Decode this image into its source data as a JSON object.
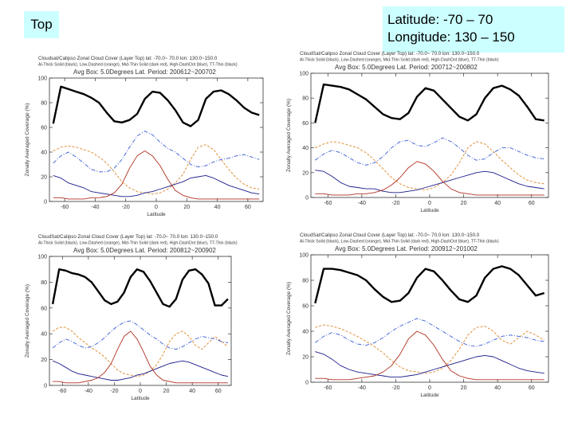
{
  "slide": {
    "top_label": "Top",
    "region_line1": "Latitude:  -70 – 70",
    "region_line2": "Longitude: 130 – 150"
  },
  "colors": {
    "thick": "#000000",
    "low": "#e0903a",
    "mid": "#1c1c8c",
    "high": "#4a6ad8",
    "thin": "#b03020",
    "label_bg": "#ccffff"
  },
  "chart_data": [
    {
      "type": "line",
      "title": "Cloudsat/Calipso Zonal Cloud Cover (Layer Top) lat: -70.0~ 70.0 lon: 130.0~150.0",
      "legend_text": "Al-Thick Solid (black), Low-Dashed (orange), Mid-Thin Solid (dark red), High-DashDot (blue), TT-Thin (black)",
      "subtitle": "Avg Box: 5.0Degrees Lat. Period: 200612~200702",
      "xlabel": "Latitude",
      "ylabel": "Zonally Averaged Coverage (%)",
      "xlim": [
        -70,
        70
      ],
      "ylim": [
        0,
        100
      ],
      "xticks": [
        -60,
        -40,
        -20,
        0,
        20,
        40,
        60
      ],
      "yticks": [
        0,
        20,
        40,
        60,
        80,
        100
      ],
      "x": [
        -67.5,
        -62.5,
        -57.5,
        -52.5,
        -47.5,
        -42.5,
        -37.5,
        -32.5,
        -27.5,
        -22.5,
        -17.5,
        -12.5,
        -7.5,
        -2.5,
        2.5,
        7.5,
        12.5,
        17.5,
        22.5,
        27.5,
        32.5,
        37.5,
        42.5,
        47.5,
        52.5,
        57.5,
        62.5,
        67.5
      ],
      "series": [
        {
          "name": "Al-Thick",
          "values": [
            63,
            93,
            91,
            89,
            87,
            84,
            80,
            72,
            65,
            64,
            66,
            71,
            83,
            89,
            88,
            82,
            74,
            64,
            61,
            66,
            83,
            89,
            90,
            87,
            82,
            76,
            72,
            70
          ]
        },
        {
          "name": "Low",
          "values": [
            41,
            44,
            45,
            44,
            42,
            40,
            36,
            31,
            24,
            16,
            11,
            8,
            7,
            6,
            7,
            10,
            15,
            22,
            34,
            44,
            46,
            42,
            34,
            26,
            19,
            14,
            11,
            10
          ]
        },
        {
          "name": "Mid",
          "values": [
            21,
            19,
            15,
            13,
            11,
            8,
            7,
            6,
            5,
            4,
            4,
            5,
            7,
            8,
            10,
            12,
            14,
            16,
            19,
            20,
            21,
            19,
            16,
            13,
            11,
            9,
            7,
            6
          ]
        },
        {
          "name": "High",
          "values": [
            31,
            37,
            40,
            36,
            31,
            26,
            24,
            24,
            27,
            34,
            44,
            53,
            57,
            54,
            48,
            43,
            40,
            35,
            30,
            28,
            29,
            32,
            34,
            35,
            37,
            38,
            36,
            34
          ]
        },
        {
          "name": "TT-Thin",
          "values": [
            3,
            3,
            2,
            2,
            2,
            3,
            3,
            4,
            7,
            14,
            27,
            37,
            41,
            37,
            29,
            18,
            9,
            5,
            3,
            2,
            2,
            2,
            2,
            2,
            2,
            2,
            2,
            2
          ]
        }
      ]
    },
    {
      "type": "line",
      "title": "CloudSat/Calipso Zonal Cloud Cover (Layer Top) lat: -70.0~ 70.0 lon: 130.0~150.0",
      "legend_text": "Al-Thick Solid (black), Low-Dashed (orange), Mid-Thin Solid (dark red), High-DashDot (blue), TT-Thin (black)",
      "subtitle": "Avg Box: 5.0Degrees Lat. Period: 200712~200802",
      "xlabel": "Latitude",
      "ylabel": "Zonally Averaged Coverage (%)",
      "xlim": [
        -70,
        70
      ],
      "ylim": [
        0,
        100
      ],
      "xticks": [
        -60,
        -40,
        -20,
        0,
        20,
        40,
        60
      ],
      "yticks": [
        0,
        20,
        40,
        60,
        80,
        100
      ],
      "x": [
        -67.5,
        -62.5,
        -57.5,
        -52.5,
        -47.5,
        -42.5,
        -37.5,
        -32.5,
        -27.5,
        -22.5,
        -17.5,
        -12.5,
        -7.5,
        -2.5,
        2.5,
        7.5,
        12.5,
        17.5,
        22.5,
        27.5,
        32.5,
        37.5,
        42.5,
        47.5,
        52.5,
        57.5,
        62.5,
        67.5
      ],
      "series": [
        {
          "name": "Al-Thick",
          "values": [
            60,
            91,
            90,
            89,
            87,
            83,
            79,
            73,
            67,
            64,
            63,
            68,
            81,
            88,
            86,
            79,
            72,
            65,
            62,
            67,
            80,
            88,
            90,
            87,
            82,
            73,
            63,
            62
          ]
        },
        {
          "name": "Low",
          "values": [
            40,
            43,
            45,
            44,
            42,
            40,
            36,
            30,
            23,
            16,
            11,
            8,
            7,
            6,
            8,
            12,
            18,
            28,
            40,
            45,
            43,
            37,
            30,
            24,
            18,
            14,
            12,
            11
          ]
        },
        {
          "name": "Mid",
          "values": [
            22,
            21,
            17,
            12,
            9,
            8,
            7,
            7,
            5,
            4,
            4,
            5,
            6,
            8,
            10,
            12,
            14,
            16,
            18,
            20,
            21,
            20,
            17,
            14,
            11,
            9,
            8,
            7
          ]
        },
        {
          "name": "High",
          "values": [
            30,
            35,
            38,
            36,
            32,
            28,
            26,
            28,
            33,
            40,
            45,
            46,
            42,
            41,
            44,
            48,
            45,
            40,
            34,
            30,
            31,
            36,
            40,
            40,
            37,
            34,
            32,
            31
          ]
        },
        {
          "name": "TT-Thin",
          "values": [
            3,
            3,
            2,
            2,
            2,
            3,
            3,
            4,
            6,
            10,
            16,
            24,
            29,
            27,
            21,
            13,
            7,
            4,
            3,
            2,
            2,
            2,
            2,
            2,
            2,
            2,
            2,
            2
          ]
        }
      ]
    },
    {
      "type": "line",
      "title": "CloudSat/Calipso Zonal Cloud Cover (Layer Top) lat: -70.0~ 70.0 lon: 130.0~150.0",
      "legend_text": "Al-Thick Solid (black), Low-Dashed (orange), Mid-Thin Solid (dark red), High-DashDot (blue), TT-Thin (black)",
      "subtitle": "Avg Box: 5.0Degrees Lat. Period: 200812~200902",
      "xlabel": "Latitude",
      "ylabel": "Zonally Averaged Coverage (%)",
      "xlim": [
        -70,
        70
      ],
      "ylim": [
        0,
        100
      ],
      "xticks": [
        -60,
        -40,
        -20,
        0,
        20,
        40,
        60
      ],
      "yticks": [
        0,
        20,
        40,
        60,
        80,
        100
      ],
      "x": [
        -67.5,
        -62.5,
        -57.5,
        -52.5,
        -47.5,
        -42.5,
        -37.5,
        -32.5,
        -27.5,
        -22.5,
        -17.5,
        -12.5,
        -7.5,
        -2.5,
        2.5,
        7.5,
        12.5,
        17.5,
        22.5,
        27.5,
        32.5,
        37.5,
        42.5,
        47.5,
        52.5,
        57.5,
        62.5,
        67.5
      ],
      "series": [
        {
          "name": "Al-Thick",
          "values": [
            63,
            90,
            89,
            87,
            86,
            84,
            80,
            73,
            66,
            63,
            65,
            72,
            84,
            90,
            88,
            81,
            72,
            63,
            61,
            67,
            82,
            89,
            90,
            86,
            79,
            62,
            62,
            67
          ]
        },
        {
          "name": "Low",
          "values": [
            42,
            45,
            45,
            42,
            37,
            33,
            29,
            26,
            22,
            17,
            12,
            9,
            8,
            7,
            8,
            11,
            16,
            24,
            34,
            40,
            42,
            38,
            31,
            28,
            33,
            38,
            34,
            30
          ]
        },
        {
          "name": "Mid",
          "values": [
            19,
            17,
            14,
            11,
            9,
            8,
            7,
            6,
            5,
            4,
            4,
            5,
            6,
            8,
            9,
            11,
            13,
            15,
            17,
            18,
            19,
            18,
            16,
            14,
            12,
            10,
            8,
            7
          ]
        },
        {
          "name": "High",
          "values": [
            29,
            33,
            36,
            34,
            31,
            29,
            30,
            33,
            37,
            42,
            46,
            49,
            50,
            47,
            43,
            39,
            36,
            32,
            29,
            28,
            30,
            33,
            36,
            38,
            37,
            36,
            34,
            33
          ]
        },
        {
          "name": "TT-Thin",
          "values": [
            3,
            3,
            2,
            2,
            2,
            3,
            4,
            6,
            10,
            17,
            28,
            38,
            42,
            36,
            26,
            15,
            8,
            4,
            3,
            2,
            2,
            2,
            2,
            2,
            2,
            2,
            2,
            2
          ]
        }
      ]
    },
    {
      "type": "line",
      "title": "CloudSat/Calipso Zonal Cloud Cover (Layer Top) lat: -70.0~ 70.0 lon: 130.0~150.0",
      "legend_text": "Al-Thick Solid (black), Low-Dashed (orange), Mid-Thin Solid (dark red), High-DashDot (blue), TT-Thin (black)",
      "subtitle": "Avg Box: 5.0Degrees Lat. Period: 200912~201002",
      "xlabel": "Latitude",
      "ylabel": "Zonally Averaged Coverage (%)",
      "xlim": [
        -70,
        70
      ],
      "ylim": [
        0,
        100
      ],
      "xticks": [
        -60,
        -40,
        -20,
        0,
        20,
        40,
        60
      ],
      "yticks": [
        0,
        20,
        40,
        60,
        80,
        100
      ],
      "x": [
        -67.5,
        -62.5,
        -57.5,
        -52.5,
        -47.5,
        -42.5,
        -37.5,
        -32.5,
        -27.5,
        -22.5,
        -17.5,
        -12.5,
        -7.5,
        -2.5,
        2.5,
        7.5,
        12.5,
        17.5,
        22.5,
        27.5,
        32.5,
        37.5,
        42.5,
        47.5,
        52.5,
        57.5,
        62.5,
        67.5
      ],
      "series": [
        {
          "name": "Al-Thick",
          "values": [
            62,
            89,
            89,
            88,
            86,
            84,
            80,
            73,
            67,
            63,
            64,
            70,
            82,
            89,
            87,
            80,
            72,
            65,
            63,
            68,
            82,
            89,
            91,
            89,
            84,
            76,
            68,
            70
          ]
        },
        {
          "name": "Low",
          "values": [
            43,
            45,
            44,
            42,
            39,
            36,
            32,
            28,
            23,
            17,
            12,
            9,
            8,
            7,
            8,
            11,
            17,
            26,
            37,
            43,
            44,
            40,
            33,
            30,
            35,
            40,
            37,
            33
          ]
        },
        {
          "name": "Mid",
          "values": [
            24,
            22,
            18,
            13,
            10,
            8,
            7,
            6,
            5,
            4,
            4,
            5,
            6,
            8,
            10,
            12,
            14,
            16,
            18,
            20,
            21,
            20,
            17,
            14,
            11,
            9,
            8,
            7
          ]
        },
        {
          "name": "High",
          "values": [
            31,
            36,
            39,
            37,
            33,
            30,
            29,
            31,
            35,
            40,
            44,
            47,
            50,
            48,
            44,
            40,
            36,
            32,
            29,
            28,
            30,
            33,
            36,
            37,
            36,
            35,
            33,
            32
          ]
        },
        {
          "name": "TT-Thin",
          "values": [
            3,
            3,
            2,
            2,
            2,
            3,
            4,
            5,
            8,
            13,
            22,
            34,
            40,
            37,
            29,
            18,
            9,
            5,
            3,
            2,
            2,
            2,
            2,
            2,
            2,
            2,
            2,
            2
          ]
        }
      ]
    }
  ]
}
